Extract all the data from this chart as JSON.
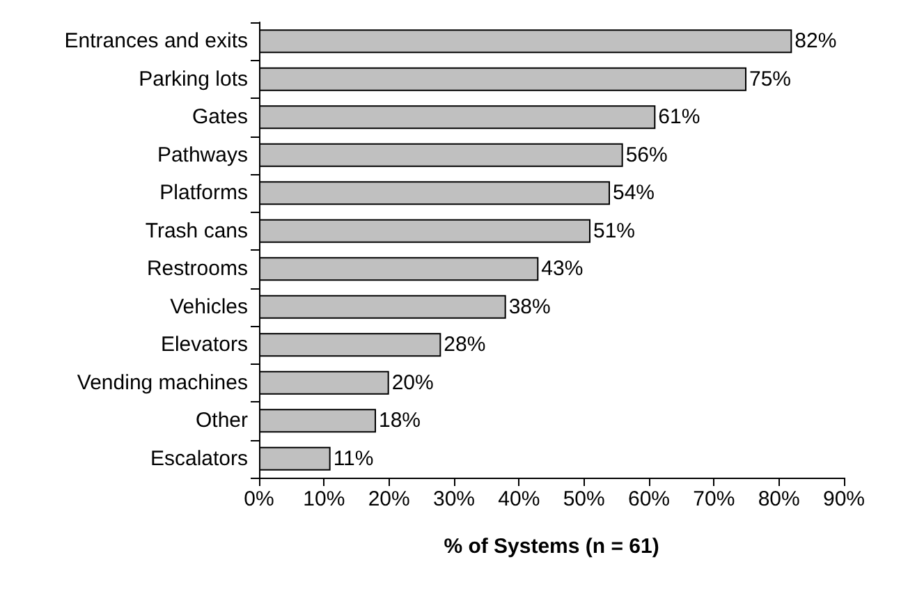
{
  "chart_data": {
    "type": "bar",
    "orientation": "horizontal",
    "xlabel": "% of Systems (n = 61)",
    "categories": [
      "Entrances and exits",
      "Parking lots",
      "Gates",
      "Pathways",
      "Platforms",
      "Trash cans",
      "Restrooms",
      "Vehicles",
      "Elevators",
      "Vending machines",
      "Other",
      "Escalators"
    ],
    "values": [
      82,
      75,
      61,
      56,
      54,
      51,
      43,
      38,
      28,
      20,
      18,
      11
    ],
    "value_labels": [
      "82%",
      "75%",
      "61%",
      "56%",
      "54%",
      "51%",
      "43%",
      "38%",
      "28%",
      "20%",
      "18%",
      "11%"
    ],
    "color": "#c0c0c0",
    "xlim": [
      0,
      90
    ],
    "xticks": [
      {
        "value": 0,
        "label": "0%"
      },
      {
        "value": 10,
        "label": "10%"
      },
      {
        "value": 20,
        "label": "20%"
      },
      {
        "value": 30,
        "label": "30%"
      },
      {
        "value": 40,
        "label": "40%"
      },
      {
        "value": 50,
        "label": "50%"
      },
      {
        "value": 60,
        "label": "60%"
      },
      {
        "value": 70,
        "label": "70%"
      },
      {
        "value": 80,
        "label": "80%"
      },
      {
        "value": 90,
        "label": "90%"
      }
    ],
    "grid": false
  }
}
